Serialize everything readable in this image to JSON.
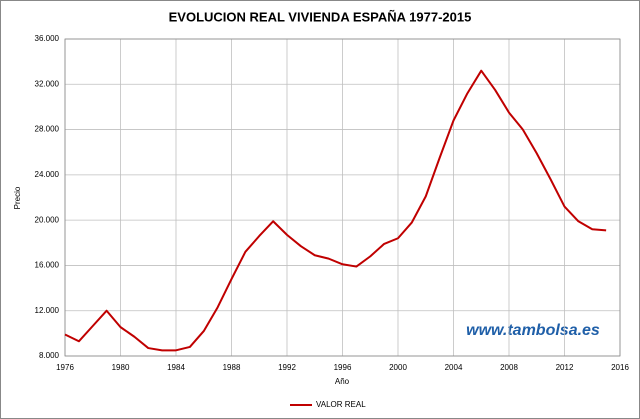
{
  "chart_data": {
    "type": "line",
    "title": "EVOLUCION REAL VIVIENDA ESPAÑA 1977-2015",
    "x_label": "Año",
    "y_label": "Precio",
    "annotation": "www.tambolsa.es",
    "x": [
      1976,
      1977,
      1978,
      1979,
      1980,
      1981,
      1982,
      1983,
      1984,
      1985,
      1986,
      1987,
      1988,
      1989,
      1990,
      1991,
      1992,
      1993,
      1994,
      1995,
      1996,
      1997,
      1998,
      1999,
      2000,
      2001,
      2002,
      2003,
      2004,
      2005,
      2006,
      2007,
      2008,
      2009,
      2010,
      2011,
      2012,
      2013,
      2014,
      2015
    ],
    "series": [
      {
        "name": "VALOR REAL",
        "color": "#c00000",
        "values": [
          9900,
          9300,
          10650,
          12000,
          10550,
          9700,
          8700,
          8500,
          8500,
          8800,
          10200,
          12300,
          14800,
          17200,
          18600,
          19900,
          18700,
          17700,
          16900,
          16600,
          16100,
          15900,
          16800,
          17900,
          18400,
          19800,
          22100,
          25500,
          28800,
          31200,
          33200,
          31500,
          29500,
          28000,
          25900,
          23600,
          21200,
          19900,
          19200,
          19100
        ]
      }
    ],
    "xlim": [
      1976,
      2016
    ],
    "xticks": [
      1976,
      1980,
      1984,
      1988,
      1992,
      1996,
      2000,
      2004,
      2008,
      2012,
      2016
    ],
    "ylim": [
      8000,
      36000
    ],
    "yticks": [
      {
        "value": 8000,
        "label": "8.000"
      },
      {
        "value": 12000,
        "label": "12.000"
      },
      {
        "value": 16000,
        "label": "16.000"
      },
      {
        "value": 20000,
        "label": "20.000"
      },
      {
        "value": 24000,
        "label": "24.000"
      },
      {
        "value": 28000,
        "label": "28.000"
      },
      {
        "value": 32000,
        "label": "32.000"
      },
      {
        "value": 36000,
        "label": "36.000"
      }
    ],
    "grid": true,
    "legend": "bottom"
  }
}
